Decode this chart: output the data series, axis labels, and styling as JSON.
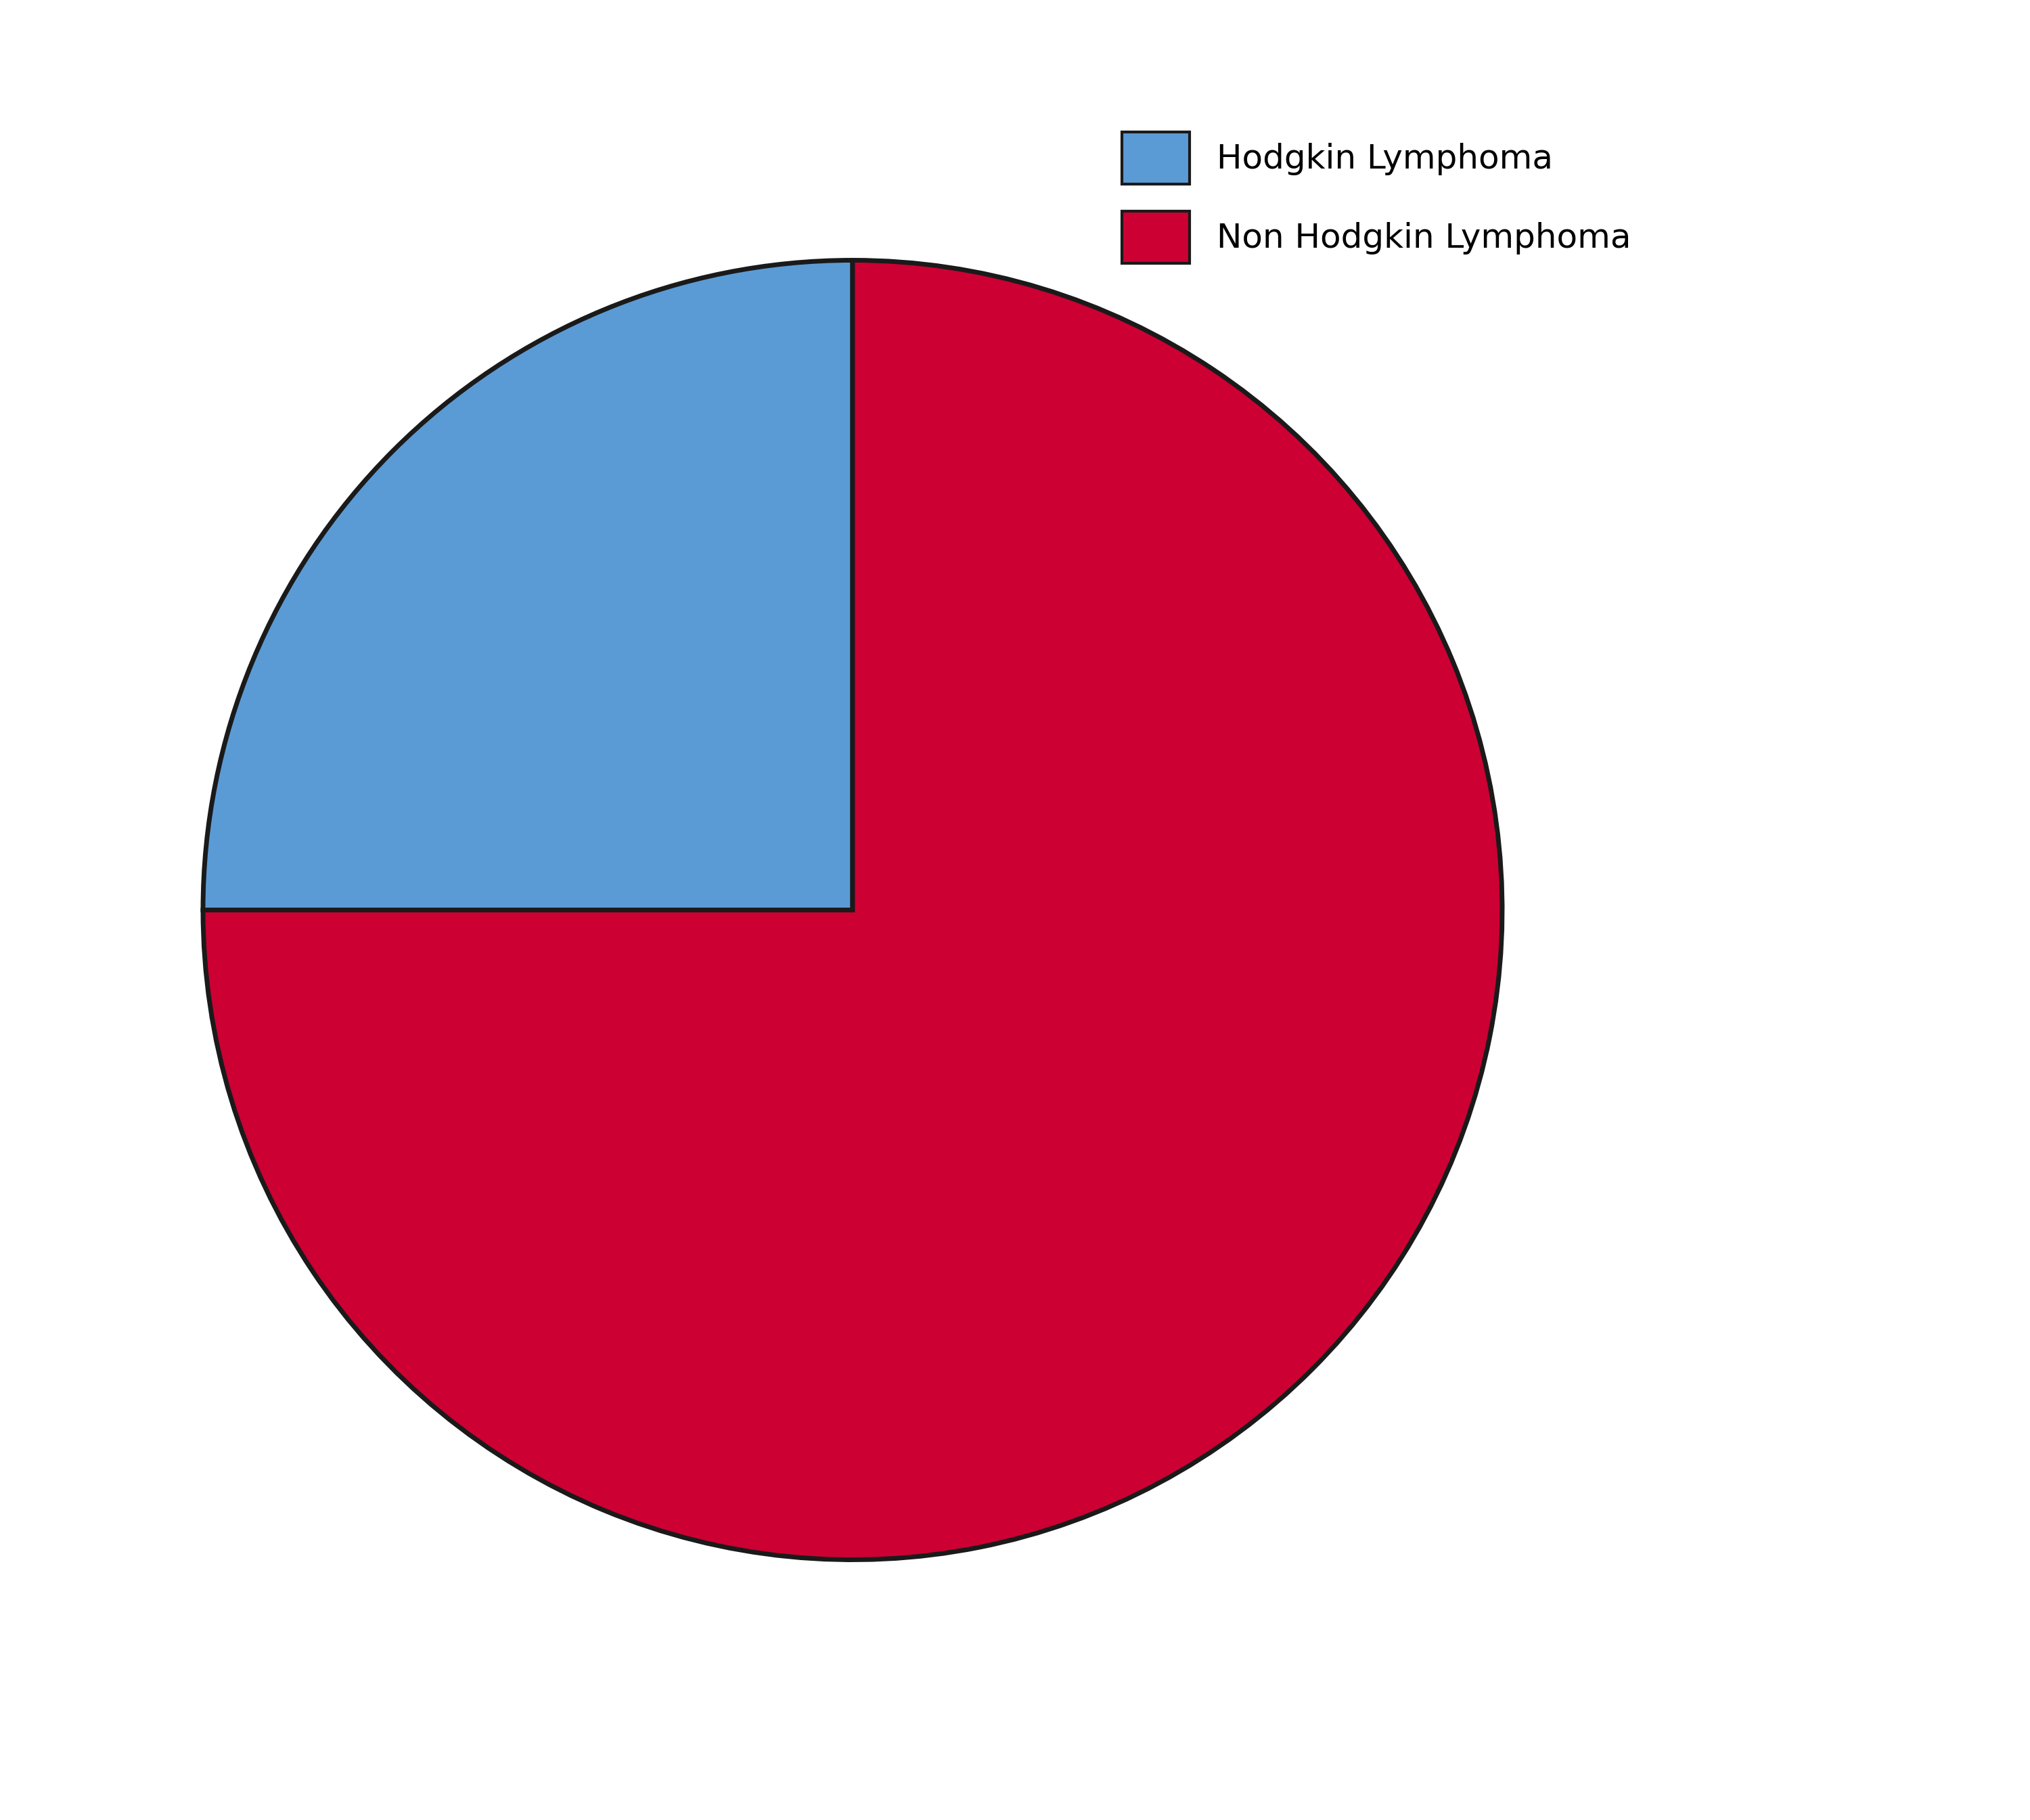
{
  "labels": [
    "Hodgkin Lymphoma",
    "Non Hodgkin Lymphoma"
  ],
  "values": [
    25,
    75
  ],
  "colors": [
    "#5B9BD5",
    "#CC0033"
  ],
  "edge_color": "#1a1a1a",
  "edge_width": 5,
  "background_color": "#ffffff",
  "legend_fontsize": 36,
  "legend_loc": "upper right",
  "startangle": 90,
  "figsize": [
    30,
    26.89
  ]
}
